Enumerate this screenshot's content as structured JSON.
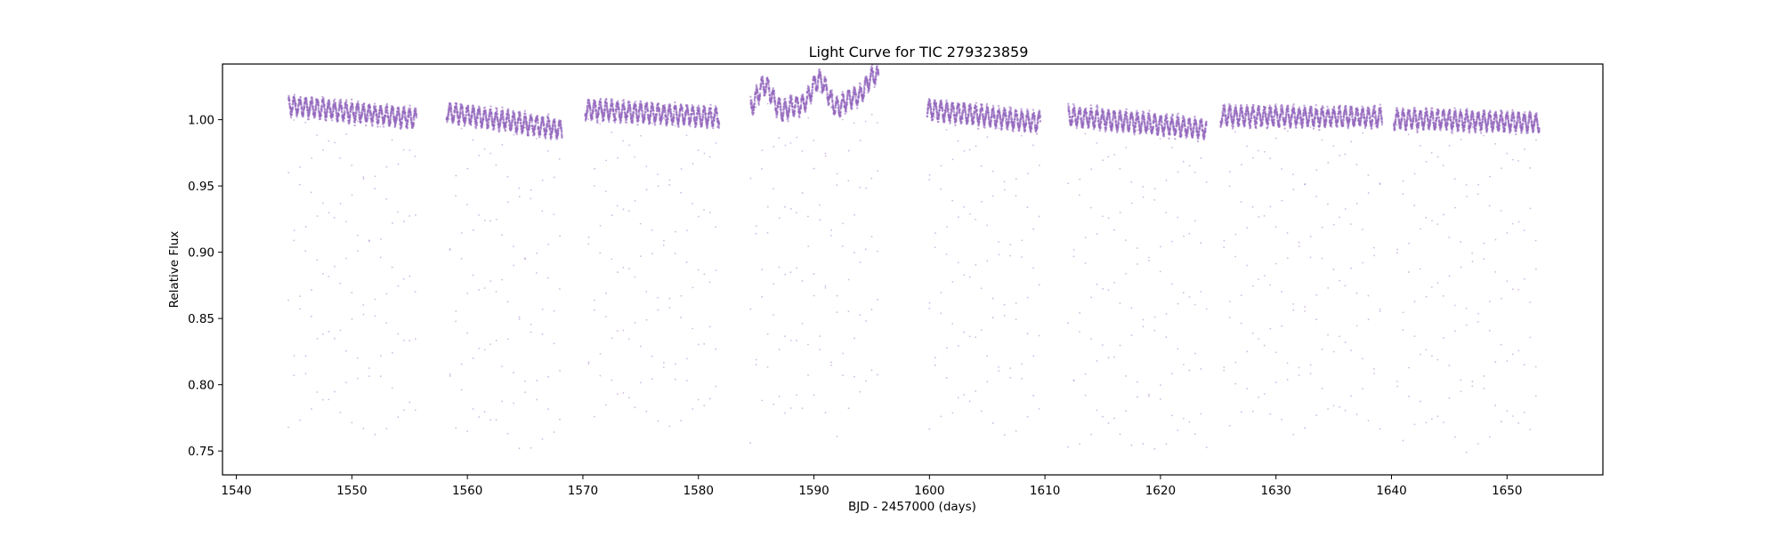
{
  "chart_data": {
    "type": "scatter",
    "title": "Light Curve for TIC 279323859",
    "xlabel": "BJD - 2457000 (days)",
    "ylabel": "Relative Flux",
    "xlim": [
      1538.8,
      1658.3
    ],
    "ylim": [
      0.732,
      1.042
    ],
    "x_ticks": [
      1540,
      1550,
      1560,
      1570,
      1580,
      1590,
      1600,
      1610,
      1620,
      1630,
      1640,
      1650
    ],
    "y_ticks": [
      0.75,
      0.8,
      0.85,
      0.9,
      0.95,
      1.0
    ],
    "grid": false,
    "legend": "none",
    "marker_color": "#9467bd",
    "series": [
      {
        "segments": [
          {
            "x_start": 1544.5,
            "x_end": 1555.6,
            "baseline_start": 1.011,
            "baseline_end": 1.001,
            "dip_depth_min": 0.752
          },
          {
            "x_start": 1558.2,
            "x_end": 1568.2,
            "baseline_start": 1.006,
            "baseline_end": 0.993,
            "dip_depth_min": 0.747
          },
          {
            "x_start": 1570.2,
            "x_end": 1581.8,
            "baseline_start": 1.008,
            "baseline_end": 1.002,
            "dip_depth_min": 0.757
          },
          {
            "x_start": 1584.5,
            "x_end": 1595.6,
            "baseline_start": 1.012,
            "baseline_end": 1.022,
            "dip_depth_min": 0.748
          },
          {
            "x_start": 1599.8,
            "x_end": 1609.6,
            "baseline_start": 1.008,
            "baseline_end": 0.998,
            "dip_depth_min": 0.757
          },
          {
            "x_start": 1612.0,
            "x_end": 1624.0,
            "baseline_start": 1.003,
            "baseline_end": 0.993,
            "dip_depth_min": 0.744
          },
          {
            "x_start": 1625.2,
            "x_end": 1639.2,
            "baseline_start": 1.003,
            "baseline_end": 1.002,
            "dip_depth_min": 0.755
          },
          {
            "x_start": 1640.2,
            "x_end": 1652.8,
            "baseline_start": 1.001,
            "baseline_end": 0.998,
            "dip_depth_min": 0.747
          }
        ],
        "modulation_period_days": 0.5,
        "eclipse_period_days": 0.5,
        "out_of_eclipse_flux_range": [
          0.985,
          1.03
        ],
        "eclipse_minimum_flux": 0.744
      }
    ]
  }
}
